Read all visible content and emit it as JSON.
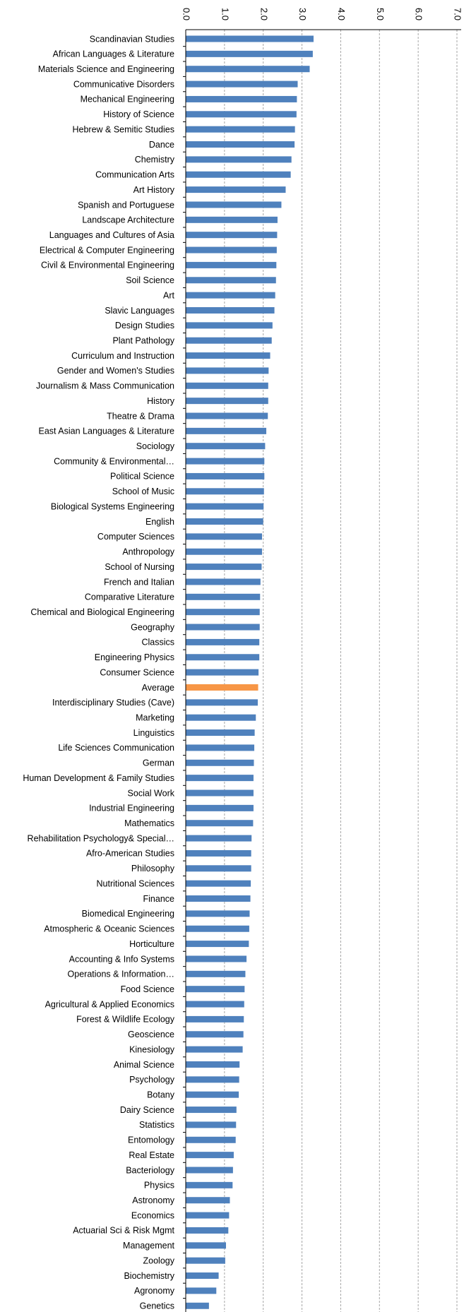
{
  "chart_data": {
    "type": "bar",
    "orientation": "horizontal",
    "value_axis": {
      "min": 0,
      "max": 7,
      "step": 1,
      "tick_labels": [
        "0.0",
        "1.0",
        "2.0",
        "3.0",
        "4.0",
        "5.0",
        "6.0",
        "7.0"
      ],
      "position": "top",
      "gridlines": "dashed"
    },
    "axis_title": "",
    "colors": {
      "bar": "#4f81bd",
      "highlight": "#f79646",
      "grid": "#a6a6a6",
      "axis": "#000000"
    },
    "highlight_category": "Average",
    "categories": [
      "Scandinavian Studies",
      "African Languages & Literature",
      "Materials Science and Engineering",
      "Communicative Disorders",
      "Mechanical Engineering",
      "History of Science",
      "Hebrew & Semitic Studies",
      "Dance",
      "Chemistry",
      "Communication Arts",
      "Art History",
      "Spanish and Portuguese",
      "Landscape Architecture",
      "Languages and Cultures of Asia",
      "Electrical & Computer Engineering",
      "Civil & Environmental Engineering",
      "Soil Science",
      "Art",
      "Slavic Languages",
      "Design Studies",
      "Plant Pathology",
      "Curriculum and Instruction",
      "Gender and Women's Studies",
      "Journalism & Mass Communication",
      "History",
      "Theatre & Drama",
      "East Asian Languages & Literature",
      "Sociology",
      "Community & Environmental…",
      "Political Science",
      "School of Music",
      "Biological Systems Engineering",
      "English",
      "Computer Sciences",
      "Anthropology",
      "School of Nursing",
      "French and Italian",
      "Comparative Literature",
      "Chemical and Biological Engineering",
      "Geography",
      "Classics",
      "Engineering Physics",
      "Consumer Science",
      "Average",
      "Interdisciplinary Studies (Cave)",
      "Marketing",
      "Linguistics",
      "Life Sciences Communication",
      "German",
      "Human Development & Family Studies",
      "Social Work",
      "Industrial Engineering",
      "Mathematics",
      "Rehabilitation Psychology& Special…",
      "Afro-American Studies",
      "Philosophy",
      "Nutritional Sciences",
      "Finance",
      "Biomedical Engineering",
      "Atmospheric & Oceanic Sciences",
      "Horticulture",
      "Accounting & Info Systems",
      "Operations & Information…",
      "Food Science",
      "Agricultural & Applied Economics",
      "Forest & Wildlife Ecology",
      "Geoscience",
      "Kinesiology",
      "Animal Science",
      "Psychology",
      "Botany",
      "Dairy Science",
      "Statistics",
      "Entomology",
      "Real Estate",
      "Bacteriology",
      "Physics",
      "Astronomy",
      "Economics",
      "Actuarial Sci & Risk Mgmt",
      "Management",
      "Zoology",
      "Biochemistry",
      "Agronomy",
      "Genetics"
    ],
    "values": [
      3.29,
      3.27,
      3.19,
      2.88,
      2.86,
      2.85,
      2.81,
      2.8,
      2.72,
      2.7,
      2.57,
      2.46,
      2.36,
      2.35,
      2.34,
      2.33,
      2.32,
      2.3,
      2.28,
      2.23,
      2.21,
      2.17,
      2.13,
      2.12,
      2.12,
      2.11,
      2.07,
      2.04,
      2.02,
      2.02,
      2.01,
      2.0,
      1.99,
      1.96,
      1.96,
      1.95,
      1.92,
      1.91,
      1.9,
      1.9,
      1.89,
      1.89,
      1.87,
      1.86,
      1.85,
      1.8,
      1.77,
      1.76,
      1.75,
      1.74,
      1.74,
      1.74,
      1.73,
      1.69,
      1.68,
      1.68,
      1.67,
      1.66,
      1.64,
      1.63,
      1.62,
      1.56,
      1.53,
      1.51,
      1.5,
      1.49,
      1.48,
      1.46,
      1.38,
      1.37,
      1.36,
      1.3,
      1.29,
      1.28,
      1.23,
      1.21,
      1.2,
      1.13,
      1.11,
      1.09,
      1.03,
      1.01,
      0.84,
      0.78,
      0.59
    ]
  }
}
